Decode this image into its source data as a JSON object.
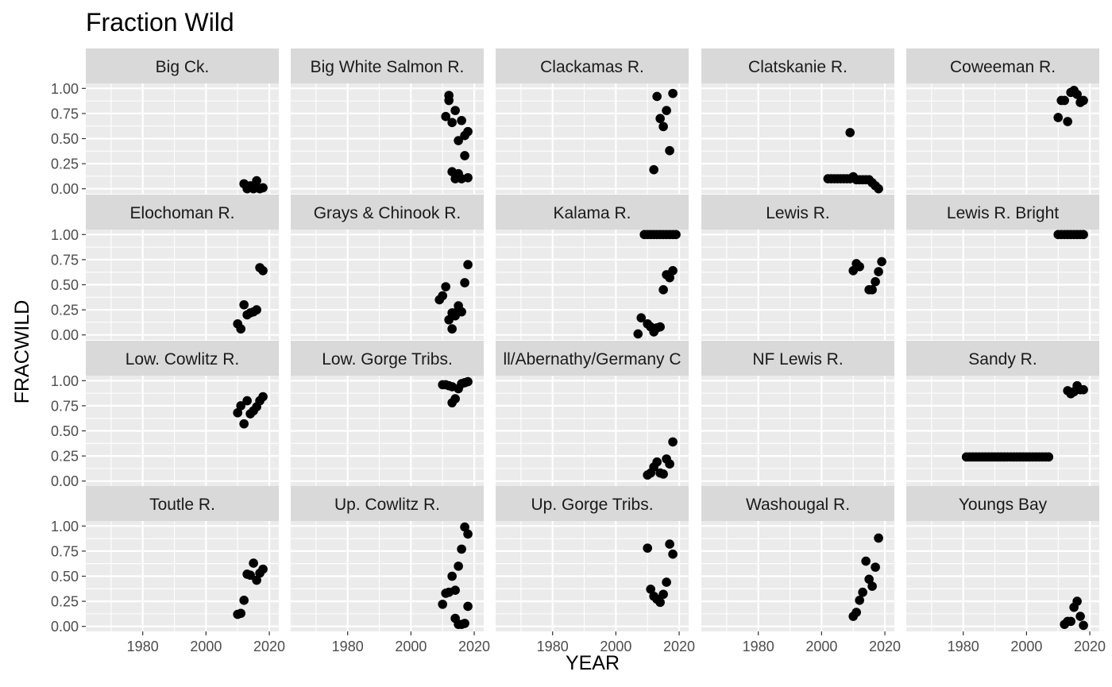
{
  "chart_data": {
    "type": "scatter",
    "title": "Fraction Wild",
    "xlabel": "YEAR",
    "ylabel": "FRACWILD",
    "xlim": [
      1962,
      2023
    ],
    "ylim": [
      -0.05,
      1.05
    ],
    "x_ticks": [
      1980,
      2000,
      2020
    ],
    "y_ticks": [
      0,
      0.25,
      0.5,
      0.75,
      1.0
    ],
    "y_tick_labels": [
      "0.00",
      "0.25",
      "0.50",
      "0.75",
      "1.00"
    ],
    "facet_layout": {
      "rows": 4,
      "cols": 5
    },
    "grid": true,
    "point_color": "#000000",
    "panel_background": "#ebebeb",
    "strip_background": "#d9d9d9",
    "panels": [
      {
        "label": "Big Ck.",
        "points": [
          [
            2012,
            0.05
          ],
          [
            2013,
            0.0
          ],
          [
            2014,
            0.03
          ],
          [
            2015,
            0.0
          ],
          [
            2016,
            0.08
          ],
          [
            2017,
            0.0
          ],
          [
            2018,
            0.01
          ],
          [
            2015,
            0.02
          ]
        ]
      },
      {
        "label": "Big White Salmon R.",
        "points": [
          [
            2011,
            0.72
          ],
          [
            2012,
            0.88
          ],
          [
            2012,
            0.93
          ],
          [
            2013,
            0.66
          ],
          [
            2013,
            0.17
          ],
          [
            2014,
            0.78
          ],
          [
            2014,
            0.1
          ],
          [
            2015,
            0.48
          ],
          [
            2015,
            0.15
          ],
          [
            2016,
            0.68
          ],
          [
            2016,
            0.1
          ],
          [
            2017,
            0.53
          ],
          [
            2017,
            0.33
          ],
          [
            2018,
            0.57
          ],
          [
            2018,
            0.11
          ]
        ]
      },
      {
        "label": "Clackamas R.",
        "points": [
          [
            2012,
            0.19
          ],
          [
            2013,
            0.92
          ],
          [
            2014,
            0.7
          ],
          [
            2015,
            0.62
          ],
          [
            2016,
            0.78
          ],
          [
            2017,
            0.38
          ],
          [
            2018,
            0.95
          ]
        ]
      },
      {
        "label": "Clatskanie R.",
        "points": [
          [
            2002,
            0.1
          ],
          [
            2003,
            0.1
          ],
          [
            2004,
            0.1
          ],
          [
            2005,
            0.1
          ],
          [
            2006,
            0.1
          ],
          [
            2007,
            0.1
          ],
          [
            2008,
            0.1
          ],
          [
            2009,
            0.56
          ],
          [
            2009,
            0.1
          ],
          [
            2010,
            0.12
          ],
          [
            2011,
            0.09
          ],
          [
            2012,
            0.09
          ],
          [
            2013,
            0.09
          ],
          [
            2014,
            0.09
          ],
          [
            2015,
            0.09
          ],
          [
            2016,
            0.06
          ],
          [
            2017,
            0.03
          ],
          [
            2018,
            0.0
          ]
        ]
      },
      {
        "label": "Coweeman R.",
        "points": [
          [
            2010,
            0.71
          ],
          [
            2011,
            0.88
          ],
          [
            2012,
            0.88
          ],
          [
            2013,
            0.67
          ],
          [
            2014,
            0.96
          ],
          [
            2015,
            0.98
          ],
          [
            2016,
            0.94
          ],
          [
            2017,
            0.86
          ],
          [
            2018,
            0.88
          ]
        ]
      },
      {
        "label": "Elochoman R.",
        "points": [
          [
            2010,
            0.11
          ],
          [
            2011,
            0.06
          ],
          [
            2012,
            0.3
          ],
          [
            2013,
            0.2
          ],
          [
            2014,
            0.22
          ],
          [
            2015,
            0.23
          ],
          [
            2016,
            0.25
          ],
          [
            2017,
            0.67
          ],
          [
            2018,
            0.64
          ]
        ]
      },
      {
        "label": "Grays & Chinook R.",
        "points": [
          [
            2009,
            0.35
          ],
          [
            2010,
            0.39
          ],
          [
            2011,
            0.48
          ],
          [
            2012,
            0.15
          ],
          [
            2013,
            0.22
          ],
          [
            2013,
            0.06
          ],
          [
            2014,
            0.19
          ],
          [
            2015,
            0.29
          ],
          [
            2015,
            0.25
          ],
          [
            2016,
            0.23
          ],
          [
            2017,
            0.52
          ],
          [
            2018,
            0.7
          ]
        ]
      },
      {
        "label": "Kalama R.",
        "points": [
          [
            2007,
            0.01
          ],
          [
            2008,
            0.17
          ],
          [
            2009,
            1.0
          ],
          [
            2010,
            0.11
          ],
          [
            2010,
            1.0
          ],
          [
            2011,
            1.0
          ],
          [
            2011,
            0.08
          ],
          [
            2012,
            1.0
          ],
          [
            2012,
            0.03
          ],
          [
            2013,
            1.0
          ],
          [
            2013,
            0.07
          ],
          [
            2014,
            1.0
          ],
          [
            2014,
            0.08
          ],
          [
            2015,
            1.0
          ],
          [
            2015,
            0.45
          ],
          [
            2016,
            1.0
          ],
          [
            2016,
            0.6
          ],
          [
            2017,
            1.0
          ],
          [
            2017,
            0.57
          ],
          [
            2018,
            1.0
          ],
          [
            2018,
            0.64
          ],
          [
            2019,
            1.0
          ]
        ]
      },
      {
        "label": "Lewis R.",
        "points": [
          [
            2010,
            0.64
          ],
          [
            2011,
            0.71
          ],
          [
            2012,
            0.68
          ],
          [
            2015,
            0.45
          ],
          [
            2016,
            0.45
          ],
          [
            2017,
            0.53
          ],
          [
            2018,
            0.63
          ],
          [
            2019,
            0.73
          ]
        ]
      },
      {
        "label": "Lewis R. Bright",
        "points": [
          [
            2010,
            1.0
          ],
          [
            2011,
            1.0
          ],
          [
            2012,
            1.0
          ],
          [
            2013,
            1.0
          ],
          [
            2014,
            1.0
          ],
          [
            2015,
            1.0
          ],
          [
            2016,
            1.0
          ],
          [
            2017,
            1.0
          ],
          [
            2018,
            1.0
          ]
        ]
      },
      {
        "label": "Low. Cowlitz R.",
        "points": [
          [
            2010,
            0.68
          ],
          [
            2011,
            0.75
          ],
          [
            2012,
            0.57
          ],
          [
            2013,
            0.8
          ],
          [
            2014,
            0.67
          ],
          [
            2015,
            0.7
          ],
          [
            2016,
            0.74
          ],
          [
            2017,
            0.8
          ],
          [
            2018,
            0.84
          ]
        ]
      },
      {
        "label": "Low. Gorge Tribs.",
        "points": [
          [
            2010,
            0.96
          ],
          [
            2011,
            0.96
          ],
          [
            2012,
            0.95
          ],
          [
            2013,
            0.94
          ],
          [
            2013,
            0.78
          ],
          [
            2014,
            0.82
          ],
          [
            2015,
            0.92
          ],
          [
            2016,
            0.97
          ],
          [
            2017,
            0.98
          ],
          [
            2018,
            0.99
          ]
        ]
      },
      {
        "label": "ll/Abernathy/Germany C",
        "points": [
          [
            2010,
            0.06
          ],
          [
            2011,
            0.08
          ],
          [
            2012,
            0.14
          ],
          [
            2013,
            0.19
          ],
          [
            2014,
            0.08
          ],
          [
            2015,
            0.07
          ],
          [
            2016,
            0.22
          ],
          [
            2017,
            0.17
          ],
          [
            2018,
            0.39
          ]
        ]
      },
      {
        "label": "NF Lewis R.",
        "points": []
      },
      {
        "label": "Sandy R.",
        "points": [
          [
            1981,
            0.24
          ],
          [
            1982,
            0.24
          ],
          [
            1983,
            0.24
          ],
          [
            1984,
            0.24
          ],
          [
            1985,
            0.24
          ],
          [
            1986,
            0.24
          ],
          [
            1987,
            0.24
          ],
          [
            1988,
            0.24
          ],
          [
            1989,
            0.24
          ],
          [
            1990,
            0.24
          ],
          [
            1991,
            0.24
          ],
          [
            1992,
            0.24
          ],
          [
            1993,
            0.24
          ],
          [
            1994,
            0.24
          ],
          [
            1995,
            0.24
          ],
          [
            1996,
            0.24
          ],
          [
            1997,
            0.24
          ],
          [
            1998,
            0.24
          ],
          [
            1999,
            0.24
          ],
          [
            2000,
            0.24
          ],
          [
            2001,
            0.24
          ],
          [
            2002,
            0.24
          ],
          [
            2003,
            0.24
          ],
          [
            2004,
            0.24
          ],
          [
            2005,
            0.24
          ],
          [
            2006,
            0.24
          ],
          [
            2007,
            0.24
          ],
          [
            2013,
            0.9
          ],
          [
            2014,
            0.87
          ],
          [
            2015,
            0.89
          ],
          [
            2016,
            0.95
          ],
          [
            2017,
            0.91
          ],
          [
            2018,
            0.91
          ]
        ]
      },
      {
        "label": "Toutle R.",
        "points": [
          [
            2010,
            0.12
          ],
          [
            2011,
            0.13
          ],
          [
            2012,
            0.26
          ],
          [
            2013,
            0.52
          ],
          [
            2014,
            0.51
          ],
          [
            2015,
            0.63
          ],
          [
            2016,
            0.46
          ],
          [
            2017,
            0.53
          ],
          [
            2018,
            0.57
          ]
        ]
      },
      {
        "label": "Up. Cowlitz R.",
        "points": [
          [
            2010,
            0.22
          ],
          [
            2011,
            0.33
          ],
          [
            2012,
            0.34
          ],
          [
            2013,
            0.5
          ],
          [
            2014,
            0.36
          ],
          [
            2014,
            0.08
          ],
          [
            2015,
            0.6
          ],
          [
            2015,
            0.02
          ],
          [
            2016,
            0.77
          ],
          [
            2016,
            0.02
          ],
          [
            2017,
            0.99
          ],
          [
            2017,
            0.03
          ],
          [
            2018,
            0.92
          ],
          [
            2018,
            0.2
          ]
        ]
      },
      {
        "label": "Up. Gorge Tribs.",
        "points": [
          [
            2010,
            0.78
          ],
          [
            2011,
            0.37
          ],
          [
            2012,
            0.3
          ],
          [
            2013,
            0.27
          ],
          [
            2014,
            0.24
          ],
          [
            2015,
            0.32
          ],
          [
            2016,
            0.44
          ],
          [
            2017,
            0.82
          ],
          [
            2018,
            0.72
          ]
        ]
      },
      {
        "label": "Washougal R.",
        "points": [
          [
            2010,
            0.1
          ],
          [
            2011,
            0.14
          ],
          [
            2012,
            0.26
          ],
          [
            2013,
            0.34
          ],
          [
            2014,
            0.65
          ],
          [
            2015,
            0.47
          ],
          [
            2016,
            0.4
          ],
          [
            2017,
            0.59
          ],
          [
            2018,
            0.88
          ]
        ]
      },
      {
        "label": "Youngs Bay",
        "points": [
          [
            2012,
            0.02
          ],
          [
            2013,
            0.05
          ],
          [
            2014,
            0.05
          ],
          [
            2015,
            0.19
          ],
          [
            2016,
            0.25
          ],
          [
            2017,
            0.1
          ],
          [
            2018,
            0.01
          ]
        ]
      }
    ]
  }
}
